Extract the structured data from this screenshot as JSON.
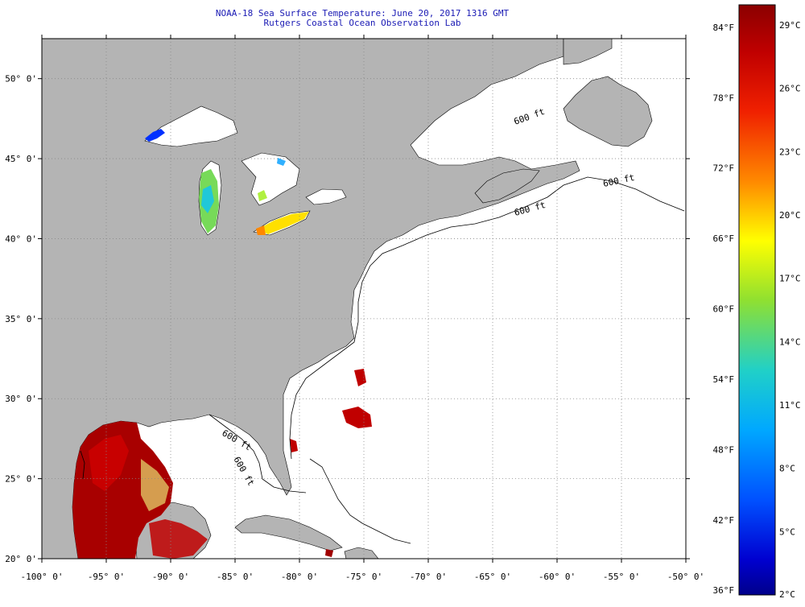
{
  "header": {
    "title": "NOAA-18 Sea Surface Temperature:  June 20, 2017 1316 GMT",
    "subtitle": "Rutgers Coastal Ocean Observation Lab"
  },
  "map": {
    "lon_range": [
      -100,
      -50
    ],
    "lat_range": [
      20,
      52.5
    ],
    "lon_ticks": [
      "-100° 0'",
      "-95° 0'",
      "-90° 0'",
      "-85° 0'",
      "-80° 0'",
      "-75° 0'",
      "-70° 0'",
      "-65° 0'",
      "-60° 0'",
      "-55° 0'",
      "-50° 0'"
    ],
    "lat_ticks": [
      "20° 0'",
      "25° 0'",
      "30° 0'",
      "35° 0'",
      "40° 0'",
      "45° 0'",
      "50° 0'"
    ],
    "land_color": "#b4b4b4",
    "grid": "dotted",
    "isobath_labels": [
      "600 ft",
      "600 ft",
      "600 ft",
      "600 ft",
      "600 ft"
    ]
  },
  "colorbar": {
    "celsius_labels": [
      "29°C",
      "26°C",
      "23°C",
      "20°C",
      "17°C",
      "14°C",
      "11°C",
      "8°C",
      "5°C",
      "2°C"
    ],
    "fahrenheit_labels": [
      "84°F",
      "78°F",
      "72°F",
      "66°F",
      "60°F",
      "54°F",
      "48°F",
      "42°F",
      "36°F"
    ],
    "stops": [
      "#8b0000",
      "#e00000",
      "#ff3c00",
      "#ff9600",
      "#ffff00",
      "#80e040",
      "#20d0c0",
      "#00a0ff",
      "#0040ff",
      "#0000c0",
      "#00008b"
    ]
  }
}
